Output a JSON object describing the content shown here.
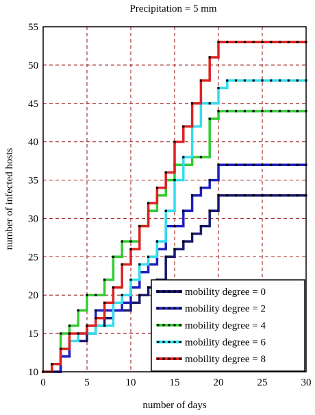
{
  "chart_data": {
    "type": "line",
    "title": "Precipitation = 5 mm",
    "xlabel": "number of days",
    "ylabel": "number of infected hosts",
    "xlim": [
      0,
      30
    ],
    "ylim": [
      10,
      55
    ],
    "xticks": [
      0,
      5,
      10,
      15,
      20,
      25,
      30
    ],
    "yticks": [
      10,
      15,
      20,
      25,
      30,
      35,
      40,
      45,
      50,
      55
    ],
    "grid": true,
    "legend_position": "bottom-right",
    "series": [
      {
        "name": "mobility degree = 0",
        "color": "#1a1a6e",
        "x": [
          0,
          1,
          2,
          3,
          4,
          5,
          6,
          7,
          8,
          9,
          10,
          11,
          12,
          13,
          14,
          15,
          16,
          17,
          18,
          19,
          20,
          21,
          22,
          23,
          24,
          25,
          26,
          27,
          28,
          29,
          30
        ],
        "y": [
          10,
          10,
          12,
          14,
          14,
          15,
          16,
          17,
          18,
          18,
          19,
          20,
          21,
          22,
          25,
          26,
          27,
          28,
          29,
          31,
          33,
          33,
          33,
          33,
          33,
          33,
          33,
          33,
          33,
          33,
          33
        ]
      },
      {
        "name": "mobility degree = 2",
        "color": "#1f1fbf",
        "x": [
          0,
          1,
          2,
          3,
          4,
          5,
          6,
          7,
          8,
          9,
          10,
          11,
          12,
          13,
          14,
          15,
          16,
          17,
          18,
          19,
          20,
          21,
          22,
          23,
          24,
          25,
          26,
          27,
          28,
          29,
          30
        ],
        "y": [
          10,
          10,
          12,
          14,
          15,
          16,
          18,
          18,
          18,
          19,
          21,
          23,
          24,
          26,
          29,
          29,
          31,
          33,
          34,
          35,
          37,
          37,
          37,
          37,
          37,
          37,
          37,
          37,
          37,
          37,
          37
        ]
      },
      {
        "name": "mobility degree = 4",
        "color": "#33cc33",
        "x": [
          0,
          1,
          2,
          3,
          4,
          5,
          6,
          7,
          8,
          9,
          10,
          11,
          12,
          13,
          14,
          15,
          16,
          17,
          18,
          19,
          20,
          21,
          22,
          23,
          24,
          25,
          26,
          27,
          28,
          29,
          30
        ],
        "y": [
          10,
          11,
          15,
          16,
          18,
          20,
          20,
          22,
          25,
          27,
          27,
          29,
          31,
          33,
          35,
          37,
          37,
          38,
          38,
          43,
          44,
          44,
          44,
          44,
          44,
          44,
          44,
          44,
          44,
          44,
          44
        ]
      },
      {
        "name": "mobility degree = 6",
        "color": "#33ddee",
        "x": [
          0,
          1,
          2,
          3,
          4,
          5,
          6,
          7,
          8,
          9,
          10,
          11,
          12,
          13,
          14,
          15,
          16,
          17,
          18,
          19,
          20,
          21,
          22,
          23,
          24,
          25,
          26,
          27,
          28,
          29,
          30
        ],
        "y": [
          10,
          11,
          13,
          14,
          15,
          15,
          16,
          16,
          19,
          20,
          22,
          24,
          25,
          27,
          31,
          35,
          38,
          42,
          45,
          45,
          47,
          48,
          48,
          48,
          48,
          48,
          48,
          48,
          48,
          48,
          48
        ]
      },
      {
        "name": "mobility degree = 8",
        "color": "#dd2222",
        "x": [
          0,
          1,
          2,
          3,
          4,
          5,
          6,
          7,
          8,
          9,
          10,
          11,
          12,
          13,
          14,
          15,
          16,
          17,
          18,
          19,
          20,
          21,
          22,
          23,
          24,
          25,
          26,
          27,
          28,
          29,
          30
        ],
        "y": [
          10,
          11,
          13,
          15,
          15,
          16,
          17,
          19,
          21,
          24,
          26,
          29,
          32,
          34,
          36,
          40,
          42,
          45,
          48,
          51,
          53,
          53,
          53,
          53,
          53,
          53,
          53,
          53,
          53,
          53,
          53
        ]
      }
    ]
  }
}
